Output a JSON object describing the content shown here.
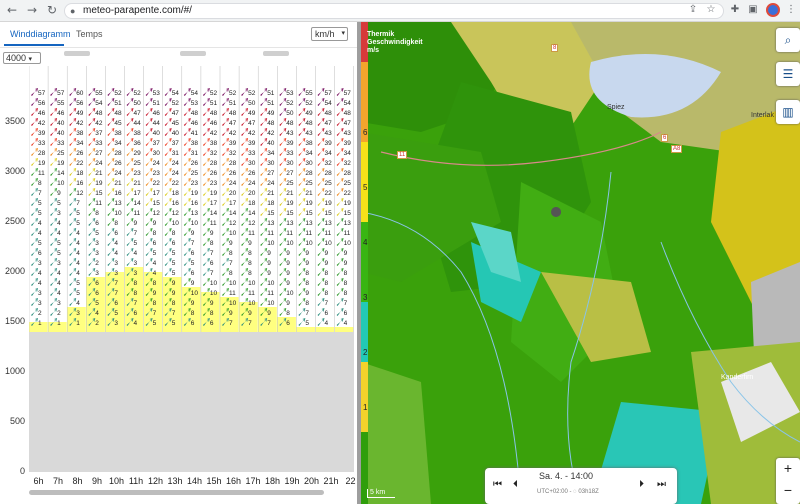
{
  "browser": {
    "url": "meteo-parapente.com/#/",
    "back_icon": "←",
    "forward_icon": "→",
    "reload_icon": "↻"
  },
  "left": {
    "tabs": [
      "Winddiagramm",
      "Temps"
    ],
    "unit_select": "km/h",
    "altitude_select": "4000",
    "y_ticks": [
      "3500",
      "3000",
      "2500",
      "2000",
      "1500",
      "1000",
      "500",
      "0"
    ],
    "x_labels": [
      "6h",
      "7h",
      "8h",
      "9h",
      "10h",
      "11h",
      "12h",
      "13h",
      "14h",
      "15h",
      "16h",
      "17h",
      "18h",
      "19h",
      "20h",
      "21h",
      "22"
    ],
    "ground_level": 1400,
    "thermal_top": [
      1500,
      1500,
      1650,
      1950,
      2000,
      2050,
      2000,
      1950,
      1850,
      1800,
      1750,
      1700,
      1650,
      1550,
      1450,
      1450,
      1450
    ],
    "wind_levels": [
      3800,
      3700,
      3600,
      3500,
      3400,
      3300,
      3200,
      3100,
      3000,
      2900,
      2800,
      2700,
      2600,
      2500,
      2400,
      2300,
      2200,
      2100,
      2000,
      1900,
      1800,
      1700,
      1600,
      1500
    ],
    "wind_speeds": [
      [
        57,
        57,
        60,
        55,
        52,
        52,
        53,
        54,
        54,
        52,
        52,
        52,
        51,
        53,
        55,
        57,
        57
      ],
      [
        56,
        55,
        56,
        54,
        51,
        50,
        51,
        52,
        53,
        51,
        51,
        50,
        51,
        52,
        52,
        54,
        54
      ],
      [
        46,
        46,
        49,
        48,
        48,
        47,
        46,
        47,
        48,
        48,
        48,
        49,
        49,
        50,
        49,
        48,
        48
      ],
      [
        42,
        40,
        42,
        42,
        45,
        44,
        44,
        45,
        46,
        46,
        47,
        47,
        48,
        48,
        48,
        47,
        47
      ],
      [
        39,
        40,
        38,
        37,
        38,
        38,
        40,
        40,
        41,
        42,
        42,
        42,
        42,
        43,
        43,
        43,
        43
      ],
      [
        33,
        33,
        34,
        33,
        34,
        36,
        37,
        37,
        38,
        38,
        39,
        39,
        40,
        39,
        38,
        39,
        39
      ],
      [
        28,
        25,
        26,
        27,
        28,
        29,
        30,
        31,
        31,
        32,
        32,
        33,
        34,
        33,
        34,
        34,
        34
      ],
      [
        19,
        19,
        22,
        24,
        26,
        25,
        24,
        24,
        26,
        28,
        28,
        30,
        30,
        30,
        30,
        32,
        32
      ],
      [
        11,
        14,
        18,
        21,
        24,
        23,
        23,
        24,
        25,
        26,
        26,
        26,
        27,
        27,
        28,
        28,
        28
      ],
      [
        8,
        10,
        16,
        19,
        21,
        21,
        22,
        22,
        23,
        23,
        24,
        24,
        24,
        25,
        25,
        25,
        25
      ],
      [
        7,
        9,
        12,
        15,
        16,
        17,
        17,
        18,
        19,
        19,
        20,
        20,
        21,
        21,
        21,
        22,
        22
      ],
      [
        5,
        5,
        7,
        11,
        13,
        14,
        15,
        16,
        16,
        17,
        17,
        18,
        18,
        19,
        19,
        19,
        19
      ],
      [
        5,
        3,
        5,
        8,
        10,
        11,
        12,
        12,
        13,
        14,
        14,
        14,
        15,
        15,
        15,
        15,
        15
      ],
      [
        4,
        4,
        5,
        6,
        8,
        9,
        9,
        10,
        10,
        11,
        12,
        12,
        13,
        13,
        13,
        13,
        13
      ],
      [
        4,
        4,
        4,
        5,
        6,
        7,
        8,
        8,
        9,
        9,
        10,
        11,
        11,
        11,
        11,
        11,
        11
      ],
      [
        5,
        5,
        4,
        3,
        4,
        5,
        6,
        6,
        7,
        8,
        9,
        9,
        10,
        10,
        10,
        10,
        10
      ],
      [
        6,
        5,
        4,
        3,
        4,
        4,
        5,
        5,
        6,
        7,
        8,
        8,
        9,
        9,
        9,
        9,
        9
      ],
      [
        3,
        3,
        4,
        2,
        3,
        3,
        4,
        5,
        5,
        6,
        7,
        8,
        9,
        9,
        9,
        9,
        9
      ],
      [
        4,
        4,
        4,
        3,
        3,
        3,
        4,
        5,
        6,
        7,
        8,
        8,
        9,
        9,
        8,
        8,
        8
      ],
      [
        4,
        4,
        5,
        6,
        7,
        8,
        8,
        9,
        9,
        10,
        10,
        10,
        10,
        9,
        8,
        8,
        8
      ],
      [
        3,
        4,
        5,
        6,
        7,
        8,
        9,
        9,
        10,
        10,
        11,
        11,
        11,
        10,
        9,
        8,
        8
      ],
      [
        3,
        3,
        4,
        5,
        6,
        7,
        8,
        8,
        9,
        9,
        10,
        10,
        10,
        9,
        8,
        7,
        7
      ],
      [
        2,
        2,
        3,
        4,
        5,
        6,
        7,
        7,
        8,
        8,
        9,
        9,
        9,
        8,
        7,
        6,
        6
      ],
      [
        1,
        1,
        1,
        2,
        3,
        4,
        5,
        5,
        6,
        6,
        7,
        7,
        7,
        6,
        5,
        4,
        4
      ]
    ]
  },
  "map": {
    "legend_title": [
      "Thermik",
      "Geschwindigkeit",
      "m/s"
    ],
    "legend_values": [
      "6",
      "5",
      "4",
      "3",
      "2",
      "1"
    ],
    "time": "Sa. 4. - 14:00",
    "time_sub": "UTC+02:00 - ◌ 03h18Z",
    "scale": "5 km",
    "zoom_in": "+",
    "zoom_out": "−",
    "labels": {
      "spiez": "Spiez",
      "interlaken": "Interlak",
      "kanderfirn": "Kanderfirn"
    },
    "roads": [
      "11",
      "A8",
      "6",
      "11",
      "8"
    ]
  },
  "colors": {
    "accent": "#1565c0",
    "thermal": "#ffff80",
    "grass": "#3aa10b"
  }
}
